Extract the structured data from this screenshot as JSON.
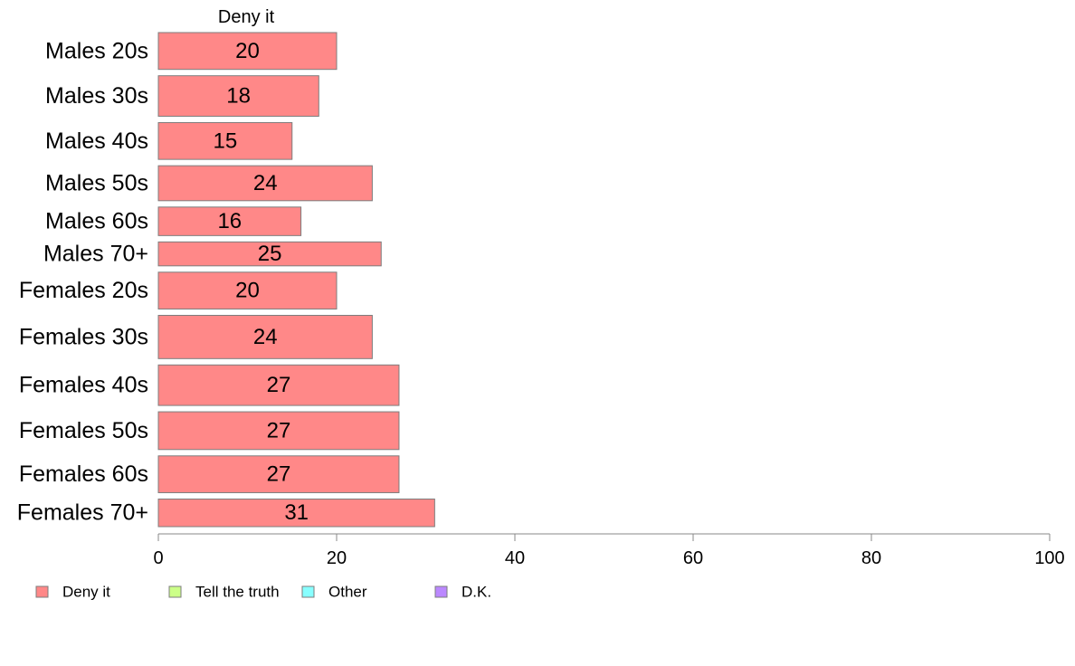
{
  "chart_data": {
    "type": "bar",
    "orientation": "horizontal",
    "categories": [
      "Males 20s",
      "Males 30s",
      "Males 40s",
      "Males 50s",
      "Males 60s",
      "Males 70+",
      "Females 20s",
      "Females 30s",
      "Females 40s",
      "Females 50s",
      "Females 60s",
      "Females 70+"
    ],
    "series": [
      {
        "name": "Deny it",
        "color": "#ff8888",
        "values": [
          20,
          18,
          15,
          24,
          16,
          25,
          20,
          24,
          27,
          27,
          27,
          31
        ],
        "labels": [
          "20",
          "18",
          "15",
          "24",
          "16",
          "25",
          "20",
          "24",
          "27",
          "27",
          "27",
          "31"
        ]
      }
    ],
    "bar_weights": [
      40,
      44,
      40,
      38,
      31,
      26,
      40,
      47,
      44,
      41,
      40,
      30
    ],
    "top_label": "Deny it",
    "xlim": [
      0,
      100
    ],
    "xticks": [
      0,
      20,
      40,
      60,
      80,
      100
    ],
    "xtick_labels": [
      "0",
      "20",
      "40",
      "60",
      "80",
      "100"
    ],
    "grid": false,
    "legend": {
      "placement": "bottom-left",
      "items": [
        {
          "label": "Deny it",
          "color": "#ff8888"
        },
        {
          "label": "Tell the truth",
          "color": "#ccff88"
        },
        {
          "label": "Other",
          "color": "#88ffff"
        },
        {
          "label": "D.K.",
          "color": "#bb88ff"
        }
      ]
    }
  }
}
